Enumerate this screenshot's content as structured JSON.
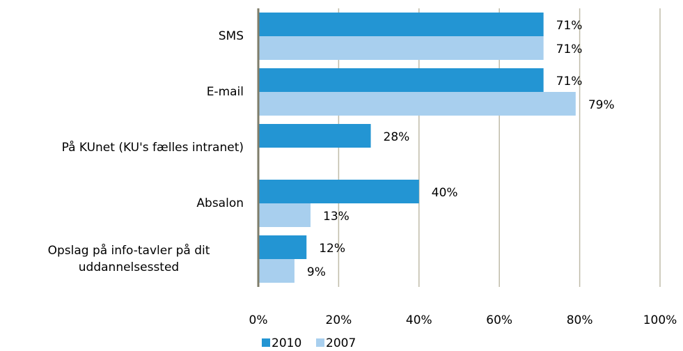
{
  "chart_data": {
    "type": "hbar",
    "categories": [
      "SMS",
      "E-mail",
      "På KUnet (KU's fælles intranet)",
      "Absalon",
      "Opslag på info-tavler på dit uddannelsessted"
    ],
    "series": [
      {
        "name": "2010",
        "color": "#2395d3",
        "values": [
          71,
          71,
          28,
          40,
          12
        ],
        "value_labels": [
          "71%",
          "71%",
          "28%",
          "40%",
          "12%"
        ]
      },
      {
        "name": "2007",
        "color": "#a8cfee",
        "values": [
          71,
          79,
          null,
          13,
          9
        ],
        "value_labels": [
          "71%",
          "79%",
          null,
          "13%",
          "9%"
        ]
      }
    ],
    "xlim": [
      0,
      100
    ],
    "xticks": [
      {
        "value": 0,
        "label": "0%"
      },
      {
        "value": 20,
        "label": "20%"
      },
      {
        "value": 40,
        "label": "40%"
      },
      {
        "value": 60,
        "label": "60%"
      },
      {
        "value": 80,
        "label": "80%"
      },
      {
        "value": 100,
        "label": "100%"
      }
    ],
    "grid": true,
    "legend": "bottom"
  }
}
